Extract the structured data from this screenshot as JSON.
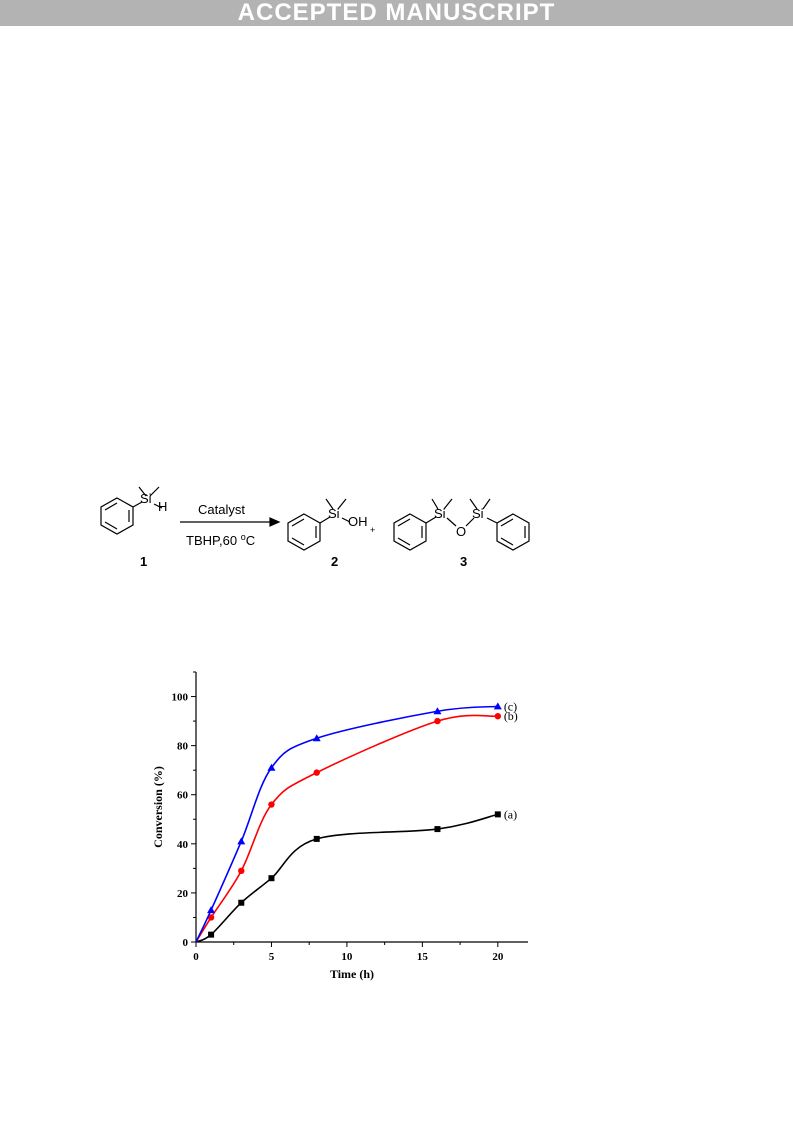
{
  "banner": "ACCEPTED MANUSCRIPT",
  "scheme": {
    "compound1_label": "1",
    "compound2_label": "2",
    "compound3_label": "3",
    "si_label": "Si",
    "h_label": "H",
    "oh_label": "OH",
    "o_label": "O",
    "plus": "+",
    "catalyst": "Catalyst",
    "conditions": "TBHP,60 ",
    "degree_o": "o",
    "degree_c": "C"
  },
  "chart_data": {
    "type": "line",
    "xlabel": "Time (h)",
    "ylabel": "Conversion (%)",
    "xlim": [
      0,
      22
    ],
    "ylim": [
      0,
      110
    ],
    "xticks": [
      0,
      5,
      10,
      15,
      20
    ],
    "yticks": [
      0,
      20,
      40,
      60,
      80,
      100
    ],
    "legend": "none (series labelled at line ends)",
    "series": [
      {
        "name": "(a)",
        "color": "#000000",
        "marker": "square",
        "x": [
          0,
          1,
          3,
          5,
          8,
          16,
          20
        ],
        "y": [
          0,
          3,
          16,
          26,
          42,
          46,
          52
        ]
      },
      {
        "name": "(b)",
        "color": "#ff0000",
        "marker": "circle",
        "x": [
          0,
          1,
          3,
          5,
          8,
          16,
          20
        ],
        "y": [
          0,
          10,
          29,
          56,
          69,
          90,
          92
        ]
      },
      {
        "name": "(c)",
        "color": "#0000ff",
        "marker": "triangle",
        "x": [
          0,
          1,
          3,
          5,
          8,
          16,
          20
        ],
        "y": [
          0,
          13,
          41,
          71,
          83,
          94,
          96
        ]
      }
    ]
  }
}
